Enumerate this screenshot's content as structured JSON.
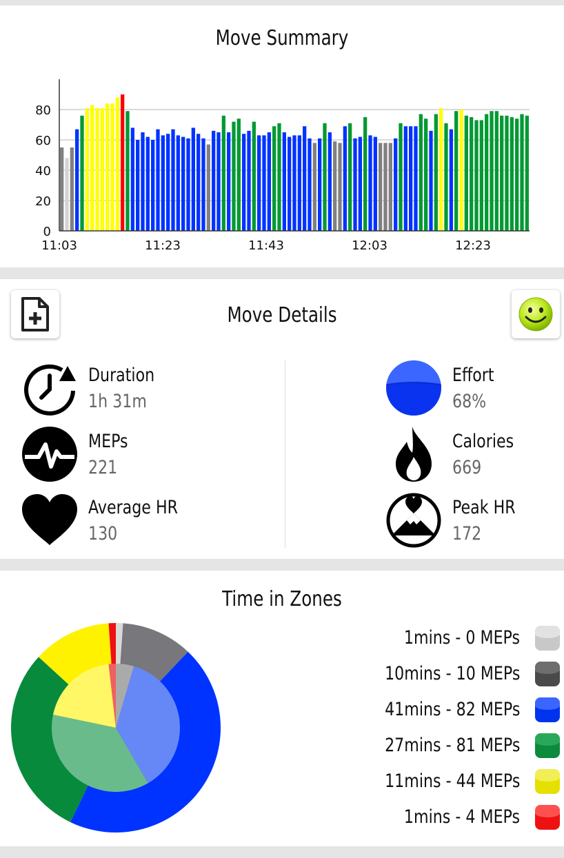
{
  "summary": {
    "title": "Move Summary",
    "chart_data": {
      "type": "bar",
      "title": "Move Summary",
      "xlabel": "",
      "ylabel": "",
      "ylim": [
        0,
        100
      ],
      "yticks": [
        0,
        20,
        40,
        60,
        80
      ],
      "x_tick_labels": [
        "11:03",
        "11:23",
        "11:43",
        "12:03",
        "12:23"
      ],
      "grid": "horizontal",
      "values": [
        55,
        48,
        55,
        67,
        76,
        81,
        83,
        81,
        81,
        84,
        84,
        88,
        90,
        79,
        68,
        60,
        65,
        62,
        60,
        67,
        63,
        64,
        67,
        63,
        62,
        61,
        68,
        64,
        61,
        57,
        66,
        65,
        76,
        65,
        72,
        74,
        64,
        66,
        72,
        63,
        63,
        65,
        69,
        71,
        65,
        62,
        63,
        63,
        69,
        61,
        58,
        61,
        71,
        65,
        59,
        58,
        69,
        71,
        61,
        62,
        75,
        63,
        62,
        58,
        58,
        58,
        61,
        71,
        69,
        69,
        69,
        77,
        74,
        66,
        77,
        81,
        71,
        67,
        79,
        80,
        76,
        75,
        73,
        73,
        77,
        79,
        79,
        76,
        76,
        75,
        74,
        77,
        76
      ],
      "colors": [
        "#808080",
        "#d3d3d3",
        "#808080",
        "#0033ff",
        "#009933",
        "#ffff00",
        "#ffff00",
        "#ffff00",
        "#ffff00",
        "#ffff00",
        "#ffff00",
        "#ffff00",
        "#ff0000",
        "#009933",
        "#0033ff",
        "#0033ff",
        "#0033ff",
        "#0033ff",
        "#0033ff",
        "#0033ff",
        "#0033ff",
        "#0033ff",
        "#0033ff",
        "#0033ff",
        "#0033ff",
        "#0033ff",
        "#0033ff",
        "#0033ff",
        "#0033ff",
        "#808080",
        "#0033ff",
        "#0033ff",
        "#009933",
        "#0033ff",
        "#009933",
        "#009933",
        "#0033ff",
        "#0033ff",
        "#009933",
        "#0033ff",
        "#0033ff",
        "#0033ff",
        "#009933",
        "#009933",
        "#0033ff",
        "#0033ff",
        "#0033ff",
        "#0033ff",
        "#0033ff",
        "#0033ff",
        "#808080",
        "#0033ff",
        "#009933",
        "#0033ff",
        "#808080",
        "#808080",
        "#0033ff",
        "#009933",
        "#0033ff",
        "#0033ff",
        "#009933",
        "#0033ff",
        "#0033ff",
        "#808080",
        "#808080",
        "#808080",
        "#0033ff",
        "#009933",
        "#0033ff",
        "#0033ff",
        "#0033ff",
        "#009933",
        "#009933",
        "#0033ff",
        "#009933",
        "#ffff00",
        "#009933",
        "#0033ff",
        "#009933",
        "#ffff00",
        "#009933",
        "#009933",
        "#009933",
        "#009933",
        "#009933",
        "#009933",
        "#009933",
        "#009933",
        "#009933",
        "#009933",
        "#009933",
        "#009933",
        "#009933"
      ]
    }
  },
  "details": {
    "title": "Move Details",
    "add_button_icon": "add-file-icon",
    "mood_button_icon": "smiley-icon",
    "stats": {
      "duration": {
        "label": "Duration",
        "value": "1h 31m",
        "icon": "clock-refresh-icon"
      },
      "meps": {
        "label": "MEPs",
        "value": "221",
        "icon": "pulse-icon"
      },
      "avg_hr": {
        "label": "Average HR",
        "value": "130",
        "icon": "heart-icon"
      },
      "effort": {
        "label": "Effort",
        "value": "68%",
        "icon": "effort-circle-icon"
      },
      "calories": {
        "label": "Calories",
        "value": "669",
        "icon": "flame-icon"
      },
      "peak_hr": {
        "label": "Peak HR",
        "value": "172",
        "icon": "mountain-heart-icon"
      }
    }
  },
  "zones": {
    "title": "Time in Zones",
    "legend": [
      {
        "label": "1mins - 0 MEPs",
        "color": "#c8c8c8",
        "color_top": "#e2e2e2"
      },
      {
        "label": "10mins - 10 MEPs",
        "color": "#4a4a4a",
        "color_top": "#6e6e6e"
      },
      {
        "label": "41mins - 82 MEPs",
        "color": "#0033ee",
        "color_top": "#3a66ff"
      },
      {
        "label": "27mins - 81 MEPs",
        "color": "#0c8a3e",
        "color_top": "#2aa85a"
      },
      {
        "label": "11mins - 44 MEPs",
        "color": "#e6e000",
        "color_top": "#f2ee55"
      },
      {
        "label": "1mins - 4 MEPs",
        "color": "#ee1111",
        "color_top": "#ff5050"
      }
    ],
    "chart_data": {
      "type": "pie",
      "series": [
        {
          "name": "time",
          "values": [
            1,
            10,
            41,
            27,
            11,
            1
          ]
        },
        {
          "name": "meps",
          "values": [
            0,
            10,
            82,
            81,
            44,
            4
          ]
        }
      ],
      "colors": [
        "#d9d9d9",
        "#77777c",
        "#0033ff",
        "#078a3c",
        "#fff200",
        "#ee1111"
      ],
      "inner_colors": [
        "#e6e6e6",
        "#aaaaaa",
        "#6688f6",
        "#6abb8c",
        "#fff766",
        "#f06060"
      ]
    }
  }
}
